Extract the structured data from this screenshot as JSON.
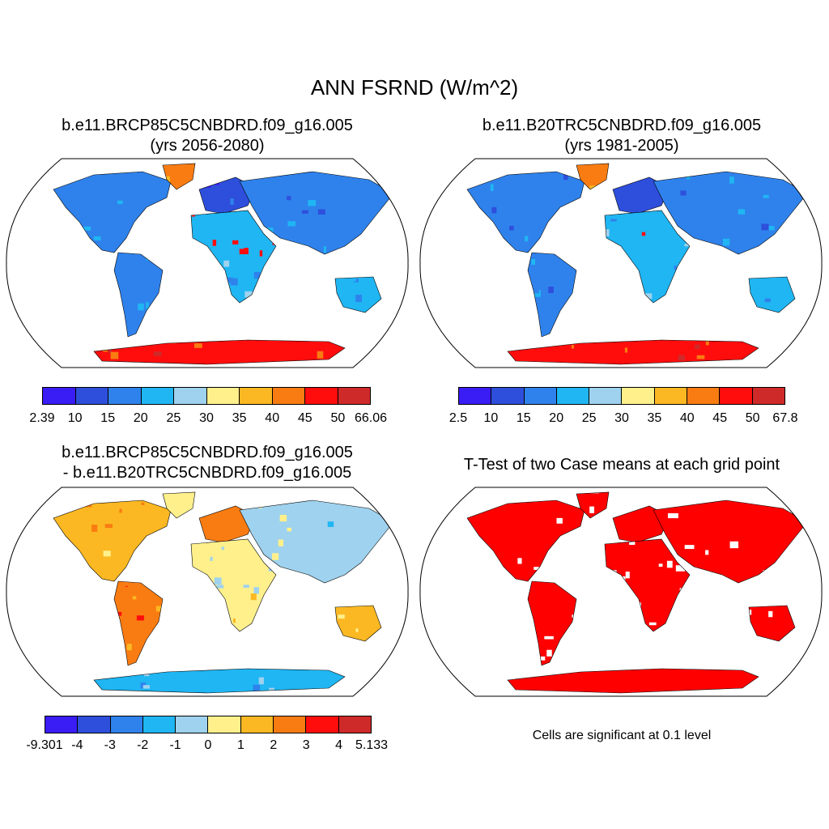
{
  "main_title": "ANN FSRND (W/m^2)",
  "colors": [
    "#3a1cf5",
    "#2e4fdc",
    "#2f82ec",
    "#1fb6f3",
    "#9fd2ee",
    "#fff08c",
    "#fbb822",
    "#f97c12",
    "#ff0d0d",
    "#cf2a2a"
  ],
  "panels": [
    {
      "title_line1": "b.e11.BRCP85C5CNBDRD.f09_g16.005",
      "title_line2": "(yrs 2056-2080)",
      "style": "absolute",
      "colorbar_labels": [
        "2.39",
        "10",
        "15",
        "20",
        "25",
        "30",
        "35",
        "40",
        "45",
        "50",
        "66.06"
      ]
    },
    {
      "title_line1": "b.e11.B20TRC5CNBDRD.f09_g16.005",
      "title_line2": "(yrs 1981-2005)",
      "style": "absolute",
      "colorbar_labels": [
        "2.5",
        "10",
        "15",
        "20",
        "25",
        "30",
        "35",
        "40",
        "45",
        "50",
        "67.8"
      ]
    },
    {
      "title_line1": "b.e11.BRCP85C5CNBDRD.f09_g16.005",
      "title_line2": "- b.e11.B20TRC5CNBDRD.f09_g16.005",
      "style": "difference",
      "colorbar_labels": [
        "-9.301",
        "-4",
        "-3",
        "-2",
        "-1",
        "0",
        "1",
        "2",
        "3",
        "4",
        "5.133"
      ]
    },
    {
      "title_line1": "T-Test of two Case means at each grid point",
      "style": "ttest",
      "note": "Cells are significant at 0.1 level",
      "significance_color": "#ff0000"
    }
  ]
}
